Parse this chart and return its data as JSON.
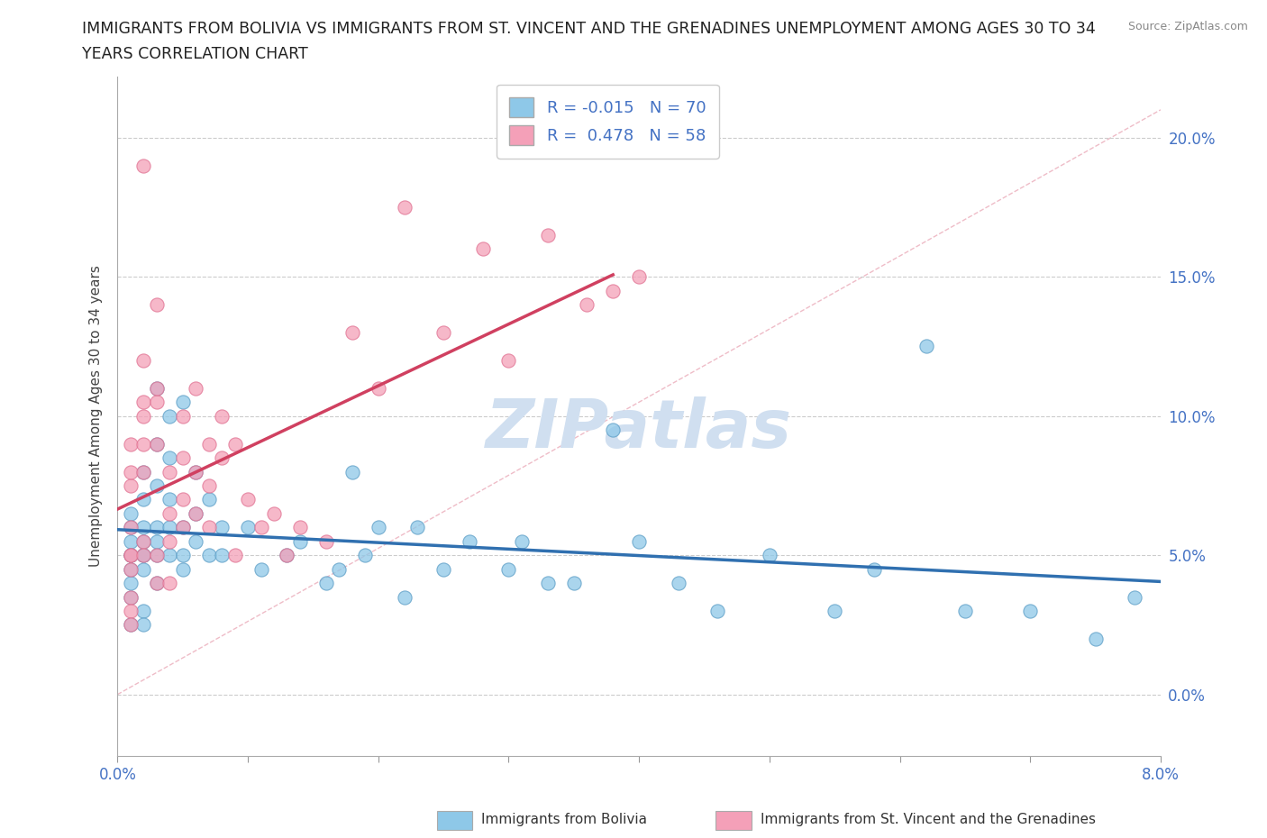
{
  "title_line1": "IMMIGRANTS FROM BOLIVIA VS IMMIGRANTS FROM ST. VINCENT AND THE GRENADINES UNEMPLOYMENT AMONG AGES 30 TO 34",
  "title_line2": "YEARS CORRELATION CHART",
  "source_text": "Source: ZipAtlas.com",
  "ylabel": "Unemployment Among Ages 30 to 34 years",
  "xlim": [
    0.0,
    0.08
  ],
  "ylim": [
    -0.022,
    0.222
  ],
  "yticks": [
    0.0,
    0.05,
    0.1,
    0.15,
    0.2
  ],
  "ytick_labels": [
    "0.0%",
    "5.0%",
    "10.0%",
    "15.0%",
    "20.0%"
  ],
  "xticks": [
    0.0,
    0.01,
    0.02,
    0.03,
    0.04,
    0.05,
    0.06,
    0.07,
    0.08
  ],
  "xtick_labels": [
    "0.0%",
    "",
    "",
    "",
    "",
    "",
    "",
    "",
    "8.0%"
  ],
  "bolivia_R": -0.015,
  "bolivia_N": 70,
  "stvincent_R": 0.478,
  "stvincent_N": 58,
  "bolivia_color": "#8ec8e8",
  "stvincent_color": "#f4a0b8",
  "bolivia_edge_color": "#5a9cc5",
  "stvincent_edge_color": "#e07090",
  "bolivia_trend_color": "#3070b0",
  "stvincent_trend_color": "#d04060",
  "diag_color": "#e8a0b0",
  "watermark": "ZIPatlas",
  "watermark_color": "#d0dff0",
  "bolivia_x": [
    0.001,
    0.001,
    0.001,
    0.001,
    0.001,
    0.001,
    0.001,
    0.001,
    0.001,
    0.002,
    0.002,
    0.002,
    0.002,
    0.002,
    0.002,
    0.002,
    0.002,
    0.002,
    0.003,
    0.003,
    0.003,
    0.003,
    0.003,
    0.003,
    0.003,
    0.004,
    0.004,
    0.004,
    0.004,
    0.004,
    0.005,
    0.005,
    0.005,
    0.005,
    0.006,
    0.006,
    0.006,
    0.007,
    0.007,
    0.008,
    0.008,
    0.01,
    0.011,
    0.013,
    0.014,
    0.016,
    0.017,
    0.018,
    0.019,
    0.02,
    0.022,
    0.023,
    0.025,
    0.027,
    0.03,
    0.031,
    0.033,
    0.035,
    0.038,
    0.04,
    0.043,
    0.046,
    0.05,
    0.055,
    0.058,
    0.062,
    0.065,
    0.07,
    0.075,
    0.078
  ],
  "bolivia_y": [
    0.05,
    0.06,
    0.04,
    0.055,
    0.045,
    0.035,
    0.025,
    0.05,
    0.065,
    0.08,
    0.07,
    0.05,
    0.06,
    0.03,
    0.025,
    0.045,
    0.055,
    0.05,
    0.09,
    0.075,
    0.11,
    0.05,
    0.06,
    0.04,
    0.055,
    0.1,
    0.085,
    0.07,
    0.05,
    0.06,
    0.105,
    0.06,
    0.045,
    0.05,
    0.08,
    0.055,
    0.065,
    0.07,
    0.05,
    0.06,
    0.05,
    0.06,
    0.045,
    0.05,
    0.055,
    0.04,
    0.045,
    0.08,
    0.05,
    0.06,
    0.035,
    0.06,
    0.045,
    0.055,
    0.045,
    0.055,
    0.04,
    0.04,
    0.095,
    0.055,
    0.04,
    0.03,
    0.05,
    0.03,
    0.045,
    0.125,
    0.03,
    0.03,
    0.02,
    0.035
  ],
  "stvincent_x": [
    0.001,
    0.001,
    0.001,
    0.001,
    0.001,
    0.001,
    0.001,
    0.001,
    0.001,
    0.001,
    0.002,
    0.002,
    0.002,
    0.002,
    0.002,
    0.002,
    0.002,
    0.002,
    0.003,
    0.003,
    0.003,
    0.003,
    0.003,
    0.003,
    0.004,
    0.004,
    0.004,
    0.004,
    0.005,
    0.005,
    0.005,
    0.005,
    0.006,
    0.006,
    0.006,
    0.007,
    0.007,
    0.007,
    0.008,
    0.008,
    0.009,
    0.009,
    0.01,
    0.011,
    0.012,
    0.013,
    0.014,
    0.016,
    0.018,
    0.02,
    0.022,
    0.025,
    0.028,
    0.03,
    0.033,
    0.036,
    0.038,
    0.04
  ],
  "stvincent_y": [
    0.09,
    0.075,
    0.05,
    0.05,
    0.045,
    0.035,
    0.03,
    0.025,
    0.06,
    0.08,
    0.19,
    0.09,
    0.1,
    0.12,
    0.105,
    0.08,
    0.055,
    0.05,
    0.14,
    0.105,
    0.11,
    0.09,
    0.05,
    0.04,
    0.08,
    0.065,
    0.055,
    0.04,
    0.1,
    0.085,
    0.07,
    0.06,
    0.11,
    0.08,
    0.065,
    0.09,
    0.075,
    0.06,
    0.1,
    0.085,
    0.09,
    0.05,
    0.07,
    0.06,
    0.065,
    0.05,
    0.06,
    0.055,
    0.13,
    0.11,
    0.175,
    0.13,
    0.16,
    0.12,
    0.165,
    0.14,
    0.145,
    0.15
  ]
}
